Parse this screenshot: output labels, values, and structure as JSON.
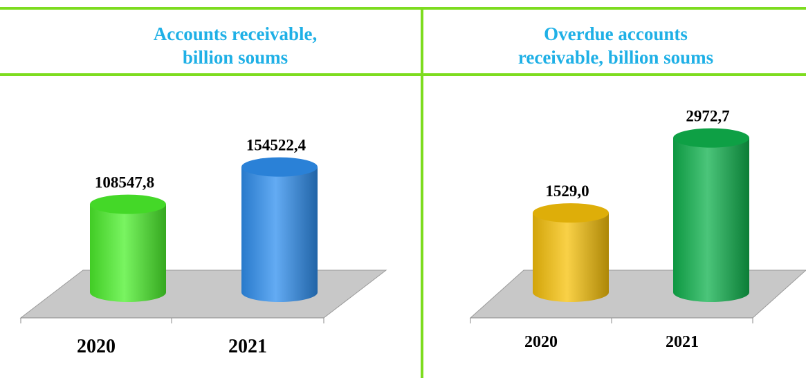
{
  "colors": {
    "divider": "#7ddc1f",
    "title": "#1fb0e6",
    "floor": "#c8c8c8"
  },
  "titles": {
    "left": "Accounts receivable,\n billion soums",
    "right": "Overdue accounts\nreceivable, billion soums"
  },
  "chart_data": [
    {
      "type": "bar",
      "style": "3d-cylinder",
      "title": "Accounts receivable, billion soums",
      "categories": [
        "2020",
        "2021"
      ],
      "values": [
        108547.8,
        154522.4
      ],
      "value_labels": [
        "108547,8",
        "154522,4"
      ],
      "bar_colors": [
        "#4cf02c",
        "#2f8fef"
      ],
      "ylim": [
        0,
        190000
      ]
    },
    {
      "type": "bar",
      "style": "3d-cylinder",
      "title": "Overdue accounts receivable, billion soums",
      "categories": [
        "2020",
        "2021"
      ],
      "values": [
        1529.0,
        2972.7
      ],
      "value_labels": [
        "1529,0",
        "2972,7"
      ],
      "bar_colors": [
        "#f7c10a",
        "#0fb24d"
      ],
      "ylim": [
        0,
        3300
      ]
    }
  ]
}
